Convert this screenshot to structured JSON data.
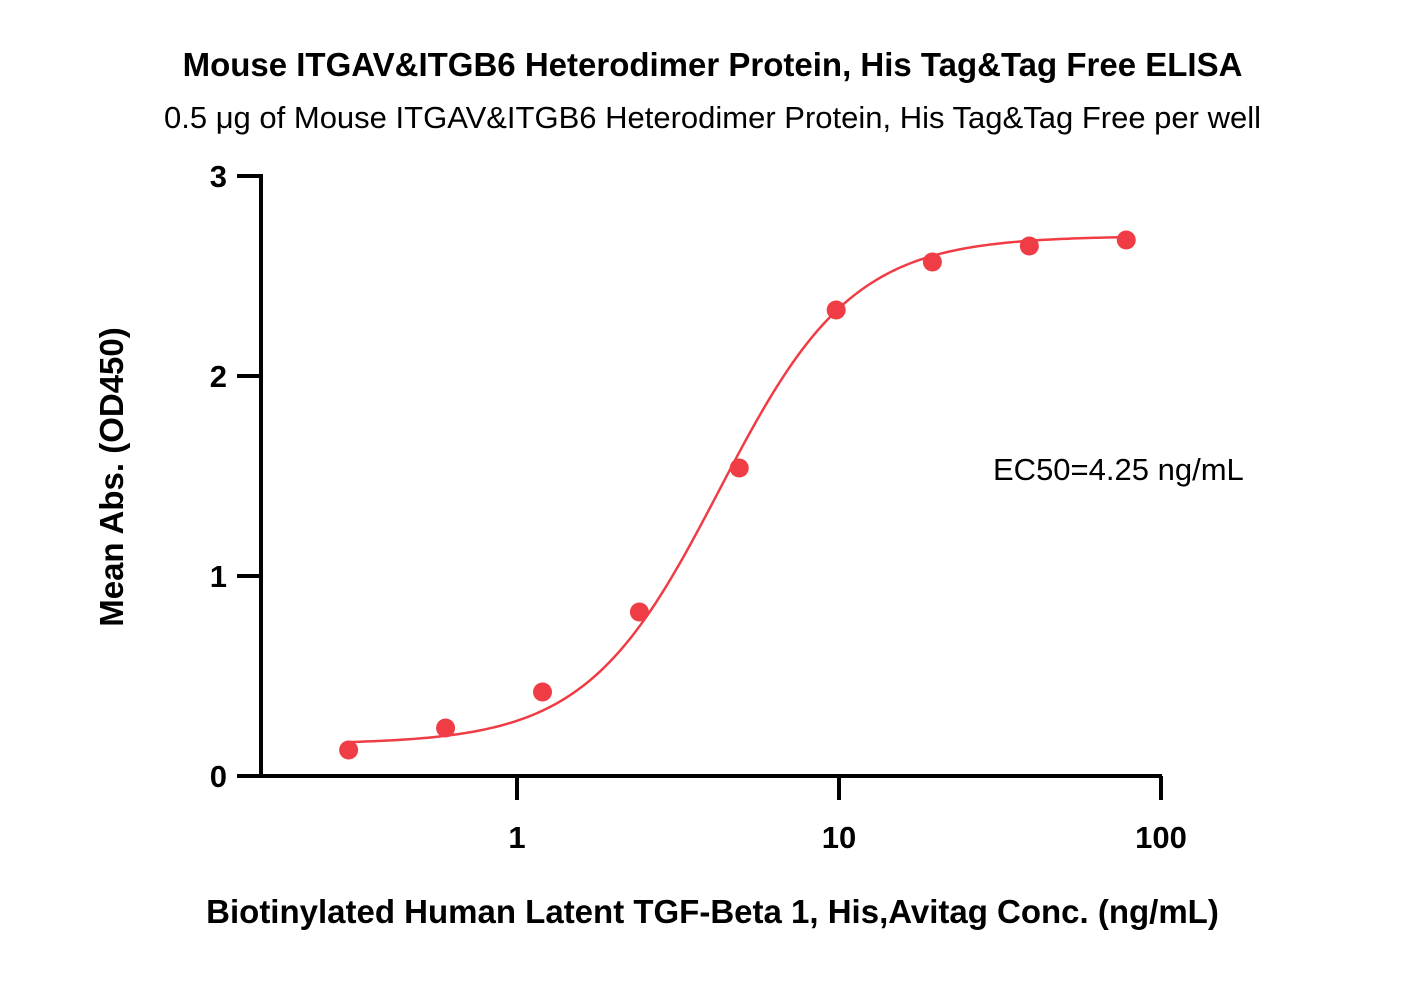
{
  "chart_data": {
    "type": "scatter",
    "title": "Mouse ITGAV&ITGB6 Heterodimer Protein, His Tag&Tag Free ELISA",
    "subtitle": "0.5 μg of Mouse ITGAV&ITGB6 Heterodimer Protein, His Tag&Tag Free per well",
    "xlabel": "Biotinylated Human Latent TGF-Beta 1, His,Avitag Conc. (ng/mL)",
    "ylabel": "Mean Abs. (OD450)",
    "x_scale": "log",
    "xlim": [
      0.15,
      100
    ],
    "ylim": [
      0,
      3
    ],
    "x_ticks": [
      "1",
      "10",
      "100"
    ],
    "y_ticks": [
      "0",
      "1",
      "2",
      "3"
    ],
    "grid": false,
    "annotation": "EC50=4.25 ng/mL",
    "color": "#f03c45",
    "series": [
      {
        "x": [
          0.3,
          0.6,
          1.2,
          2.4,
          4.9,
          9.8,
          19.5,
          39,
          78
        ],
        "y": [
          0.13,
          0.24,
          0.42,
          0.82,
          1.54,
          2.33,
          2.57,
          2.65,
          2.68
        ]
      }
    ],
    "fit": {
      "model": "4PL",
      "bottom": 0.16,
      "top": 2.7,
      "ec50": 4.25,
      "hill": 2.1
    }
  }
}
